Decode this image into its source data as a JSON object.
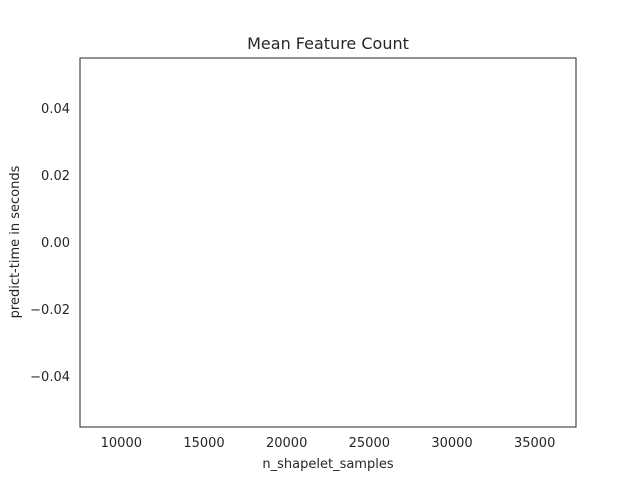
{
  "chart_data": {
    "type": "line",
    "title": "Mean Feature Count",
    "xlabel": "n_shapelet_samples",
    "ylabel": "predict-time in seconds",
    "xlim": [
      7500,
      37500
    ],
    "ylim": [
      -0.055,
      0.055
    ],
    "x_ticks": [
      10000,
      15000,
      20000,
      25000,
      30000,
      35000
    ],
    "x_tick_labels": [
      "10000",
      "15000",
      "20000",
      "25000",
      "30000",
      "35000"
    ],
    "y_ticks": [
      0.04,
      0.02,
      0.0,
      -0.02,
      -0.04
    ],
    "y_tick_labels": [
      "0.04",
      "0.02",
      "0.00",
      "−0.02",
      "−0.04"
    ],
    "series": [],
    "grid": false,
    "legend": "none",
    "colors": {
      "axes": "#262626",
      "background": "#ffffff",
      "text": "#262626"
    }
  }
}
